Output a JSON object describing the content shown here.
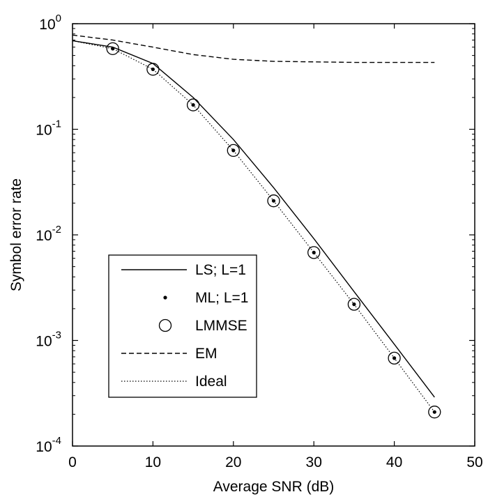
{
  "chart_data": {
    "type": "line",
    "xlabel": "Average SNR (dB)",
    "ylabel": "Symbol error rate",
    "xlim": [
      0,
      50
    ],
    "ylim": [
      0.0001,
      1
    ],
    "yscale": "log",
    "grid": false,
    "legend_position": "lower-left",
    "x_ticks": [
      {
        "value": 0,
        "label": "0"
      },
      {
        "value": 10,
        "label": "10"
      },
      {
        "value": 20,
        "label": "20"
      },
      {
        "value": 30,
        "label": "30"
      },
      {
        "value": 40,
        "label": "40"
      },
      {
        "value": 50,
        "label": "50"
      }
    ],
    "y_ticks": [
      {
        "value": 1,
        "base": "10",
        "exp": "0"
      },
      {
        "value": 0.1,
        "base": "10",
        "exp": "-1"
      },
      {
        "value": 0.01,
        "base": "10",
        "exp": "-2"
      },
      {
        "value": 0.001,
        "base": "10",
        "exp": "-3"
      },
      {
        "value": 0.0001,
        "base": "10",
        "exp": "-4"
      }
    ],
    "series": [
      {
        "name": "LS; L=1",
        "style": "solid",
        "x": [
          0,
          5,
          10,
          15,
          20,
          25,
          30,
          35,
          40,
          45
        ],
        "y": [
          0.69,
          0.6,
          0.42,
          0.2,
          0.08,
          0.028,
          0.0092,
          0.0029,
          0.00092,
          0.00029
        ]
      },
      {
        "name": "ML; L=1",
        "style": "dot-marker",
        "x": [
          5,
          10,
          15,
          20,
          25,
          30,
          35,
          40,
          45
        ],
        "y": [
          0.58,
          0.37,
          0.17,
          0.063,
          0.021,
          0.0068,
          0.0022,
          0.00068,
          0.00021
        ]
      },
      {
        "name": "LMMSE",
        "style": "circle-marker",
        "x": [
          5,
          10,
          15,
          20,
          25,
          30,
          35,
          40,
          45
        ],
        "y": [
          0.58,
          0.37,
          0.17,
          0.063,
          0.021,
          0.0068,
          0.0022,
          0.00068,
          0.00021
        ]
      },
      {
        "name": "EM",
        "style": "dashed",
        "x": [
          0,
          5,
          10,
          15,
          20,
          25,
          30,
          35,
          40,
          45
        ],
        "y": [
          0.78,
          0.7,
          0.6,
          0.51,
          0.46,
          0.44,
          0.435,
          0.43,
          0.43,
          0.43
        ]
      },
      {
        "name": "Ideal",
        "style": "dotted",
        "x": [
          0,
          5,
          10,
          15,
          20,
          25,
          30,
          35,
          40,
          45
        ],
        "y": [
          0.69,
          0.58,
          0.37,
          0.17,
          0.063,
          0.021,
          0.0068,
          0.0022,
          0.00068,
          0.00021
        ]
      }
    ]
  }
}
